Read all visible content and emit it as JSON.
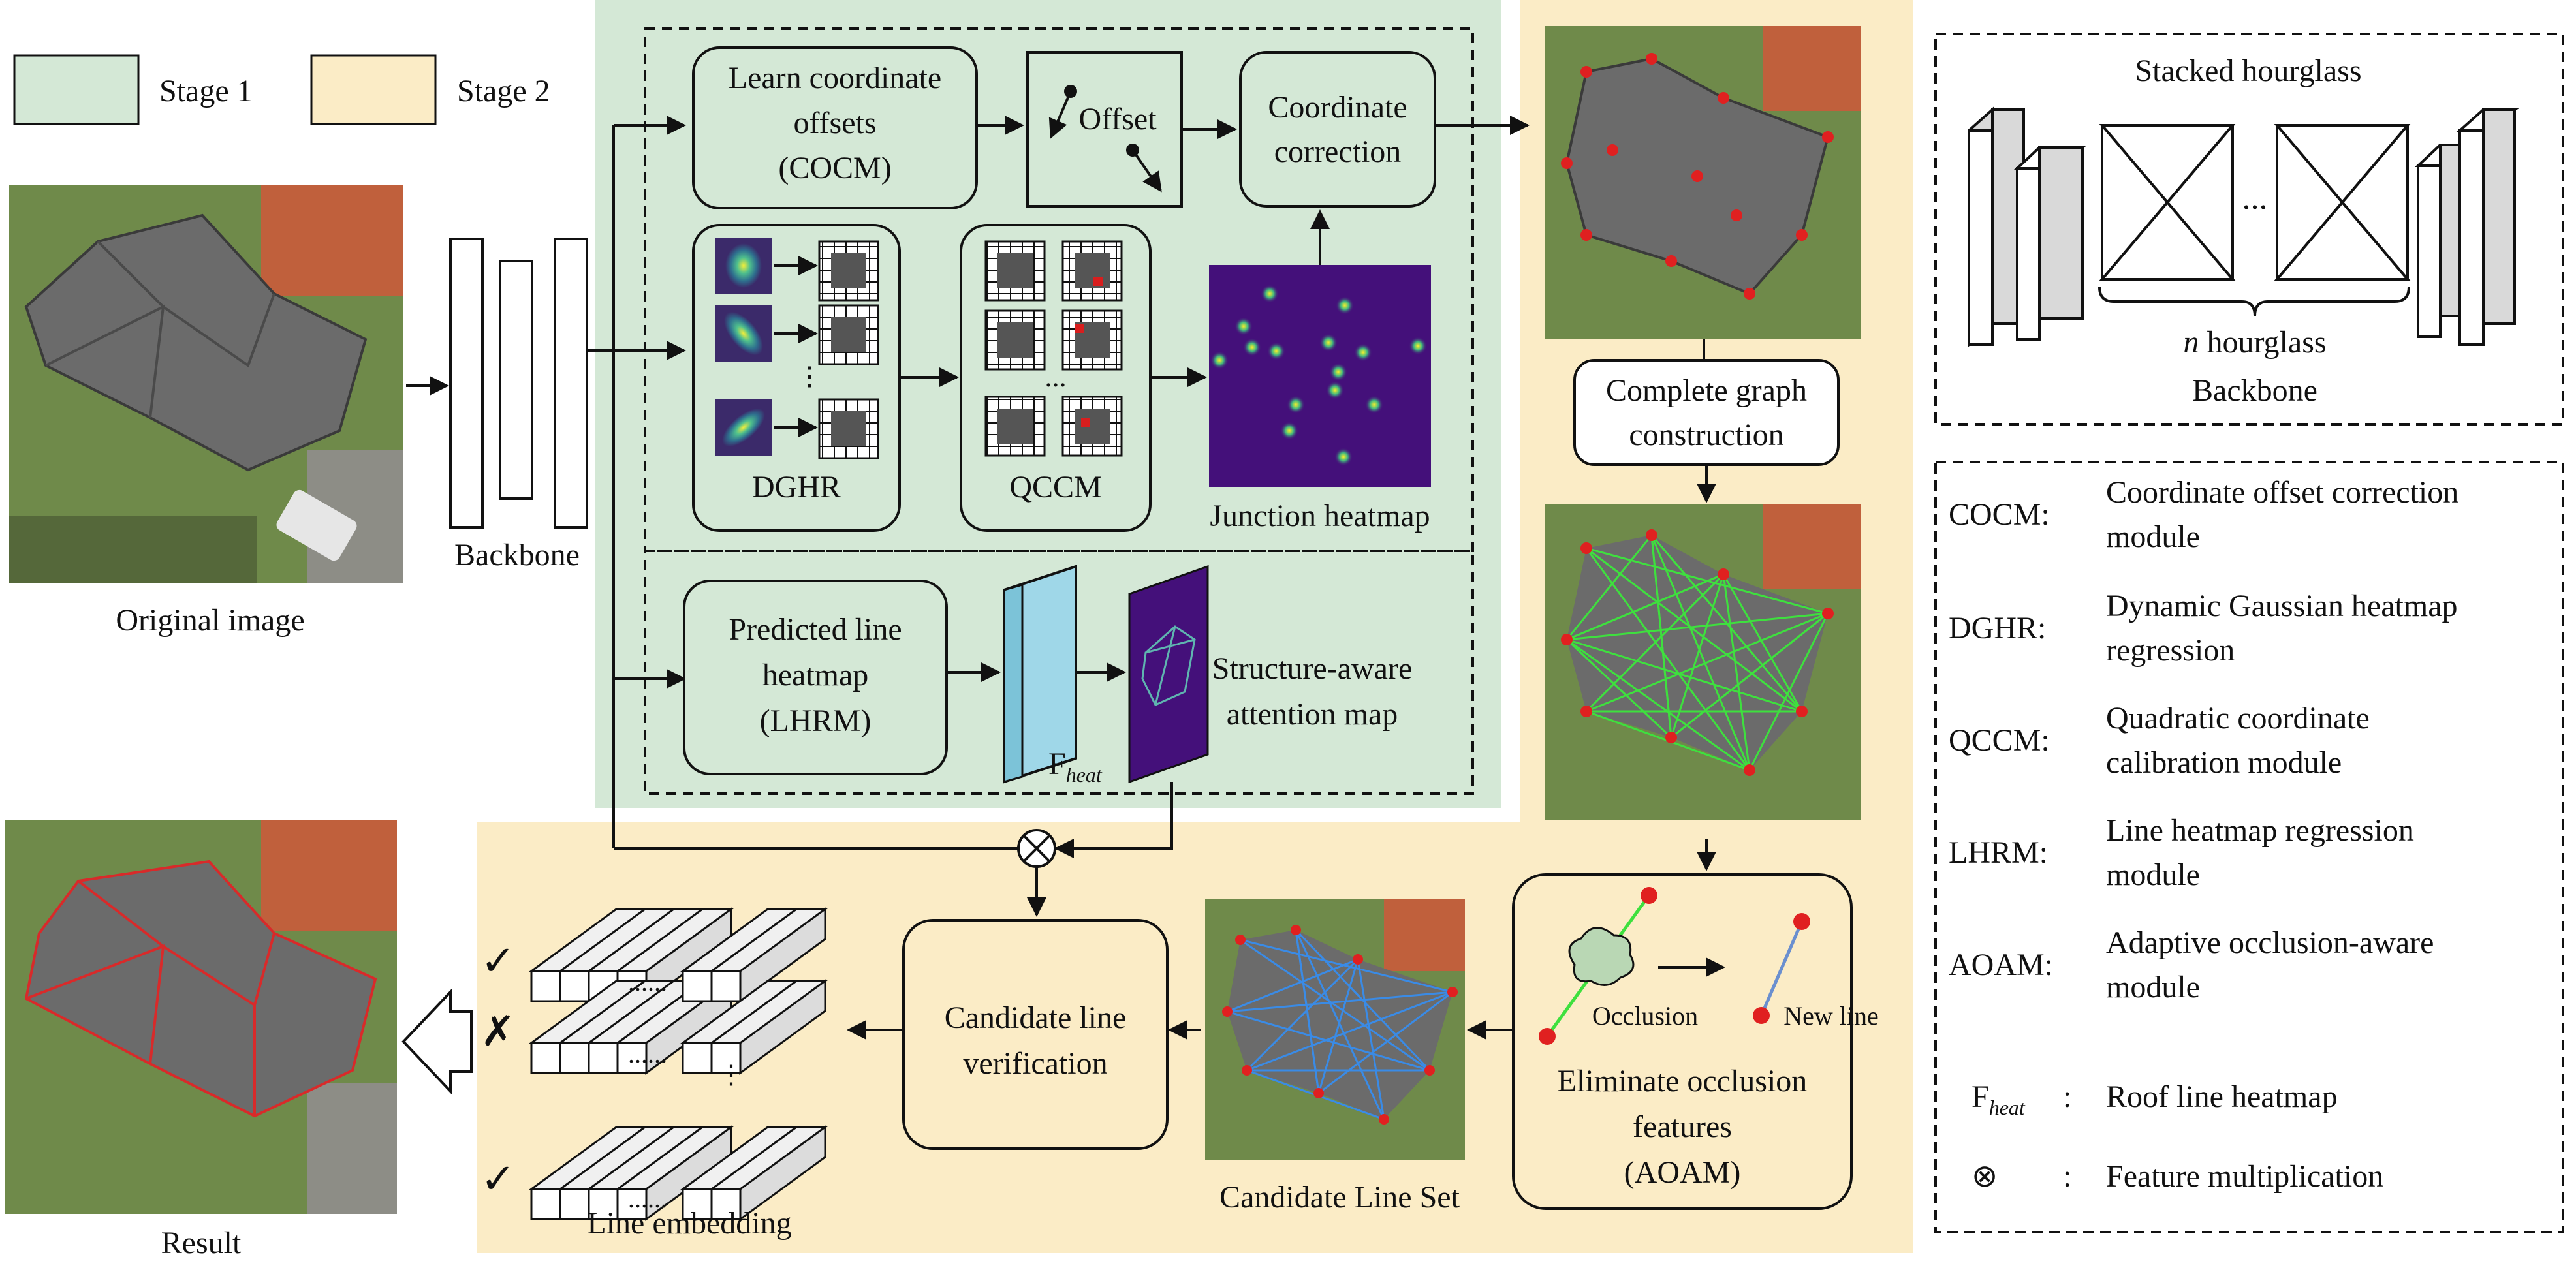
{
  "legend": {
    "stage1_label": "Stage 1",
    "stage2_label": "Stage 2",
    "stage1_color": "#d4e8d6",
    "stage2_color": "#fbecc6"
  },
  "input": {
    "caption": "Original image"
  },
  "backbone": {
    "label": "Backbone"
  },
  "cocm_box": {
    "line1": "Learn coordinate",
    "line2": "offsets",
    "line3": "(COCM)"
  },
  "offset_box": {
    "label": "Offset"
  },
  "coord_box": {
    "line1": "Coordinate",
    "line2": "correction"
  },
  "dghr": {
    "label": "DGHR"
  },
  "qccm": {
    "label": "QCCM"
  },
  "junction": {
    "label": "Junction heatmap"
  },
  "lhrm_box": {
    "line1": "Predicted line",
    "line2": "heatmap",
    "line3": "(LHRM)"
  },
  "fheat": {
    "base": "F",
    "sub": "heat"
  },
  "attention": {
    "line1": "Structure-aware",
    "line2": "attention map"
  },
  "graph_box": {
    "line1": "Complete graph",
    "line2": "construction"
  },
  "aoam_box": {
    "occlusion": "Occlusion",
    "new_line": "New line",
    "line1": "Eliminate occlusion",
    "line2": "features",
    "line3": "(AOAM)"
  },
  "candidate_set": {
    "label": "Candidate Line Set"
  },
  "verify_box": {
    "line1": "Candidate line",
    "line2": "verification"
  },
  "embedding": {
    "label": "Line embedding",
    "marks": [
      "✓",
      "✗",
      "✓"
    ],
    "dots": "......"
  },
  "result": {
    "caption": "Result"
  },
  "hourglass_panel": {
    "title": "Stacked hourglass",
    "dots": "...",
    "n_italic": "n",
    "n_rest": " hourglass",
    "subtitle": "Backbone"
  },
  "abbreviations": [
    {
      "abbr": "COCM:",
      "line1": "Coordinate offset correction",
      "line2": "module"
    },
    {
      "abbr": "DGHR:",
      "line1": "Dynamic Gaussian heatmap",
      "line2": "regression"
    },
    {
      "abbr": "QCCM:",
      "line1": "Quadratic  coordinate",
      "line2": "calibration module"
    },
    {
      "abbr": "LHRM:",
      "line1": "Line heatmap regression",
      "line2": "module"
    },
    {
      "abbr": "AOAM:",
      "line1": "Adaptive occlusion-aware",
      "line2": "module"
    }
  ],
  "symbol_defs": [
    {
      "symbol_base": "F",
      "symbol_sub": "heat",
      "colon": ":",
      "meaning": "Roof line heatmap"
    },
    {
      "symbol_base": "⊗",
      "symbol_sub": "",
      "colon": ":",
      "meaning": "Feature multiplication"
    }
  ]
}
